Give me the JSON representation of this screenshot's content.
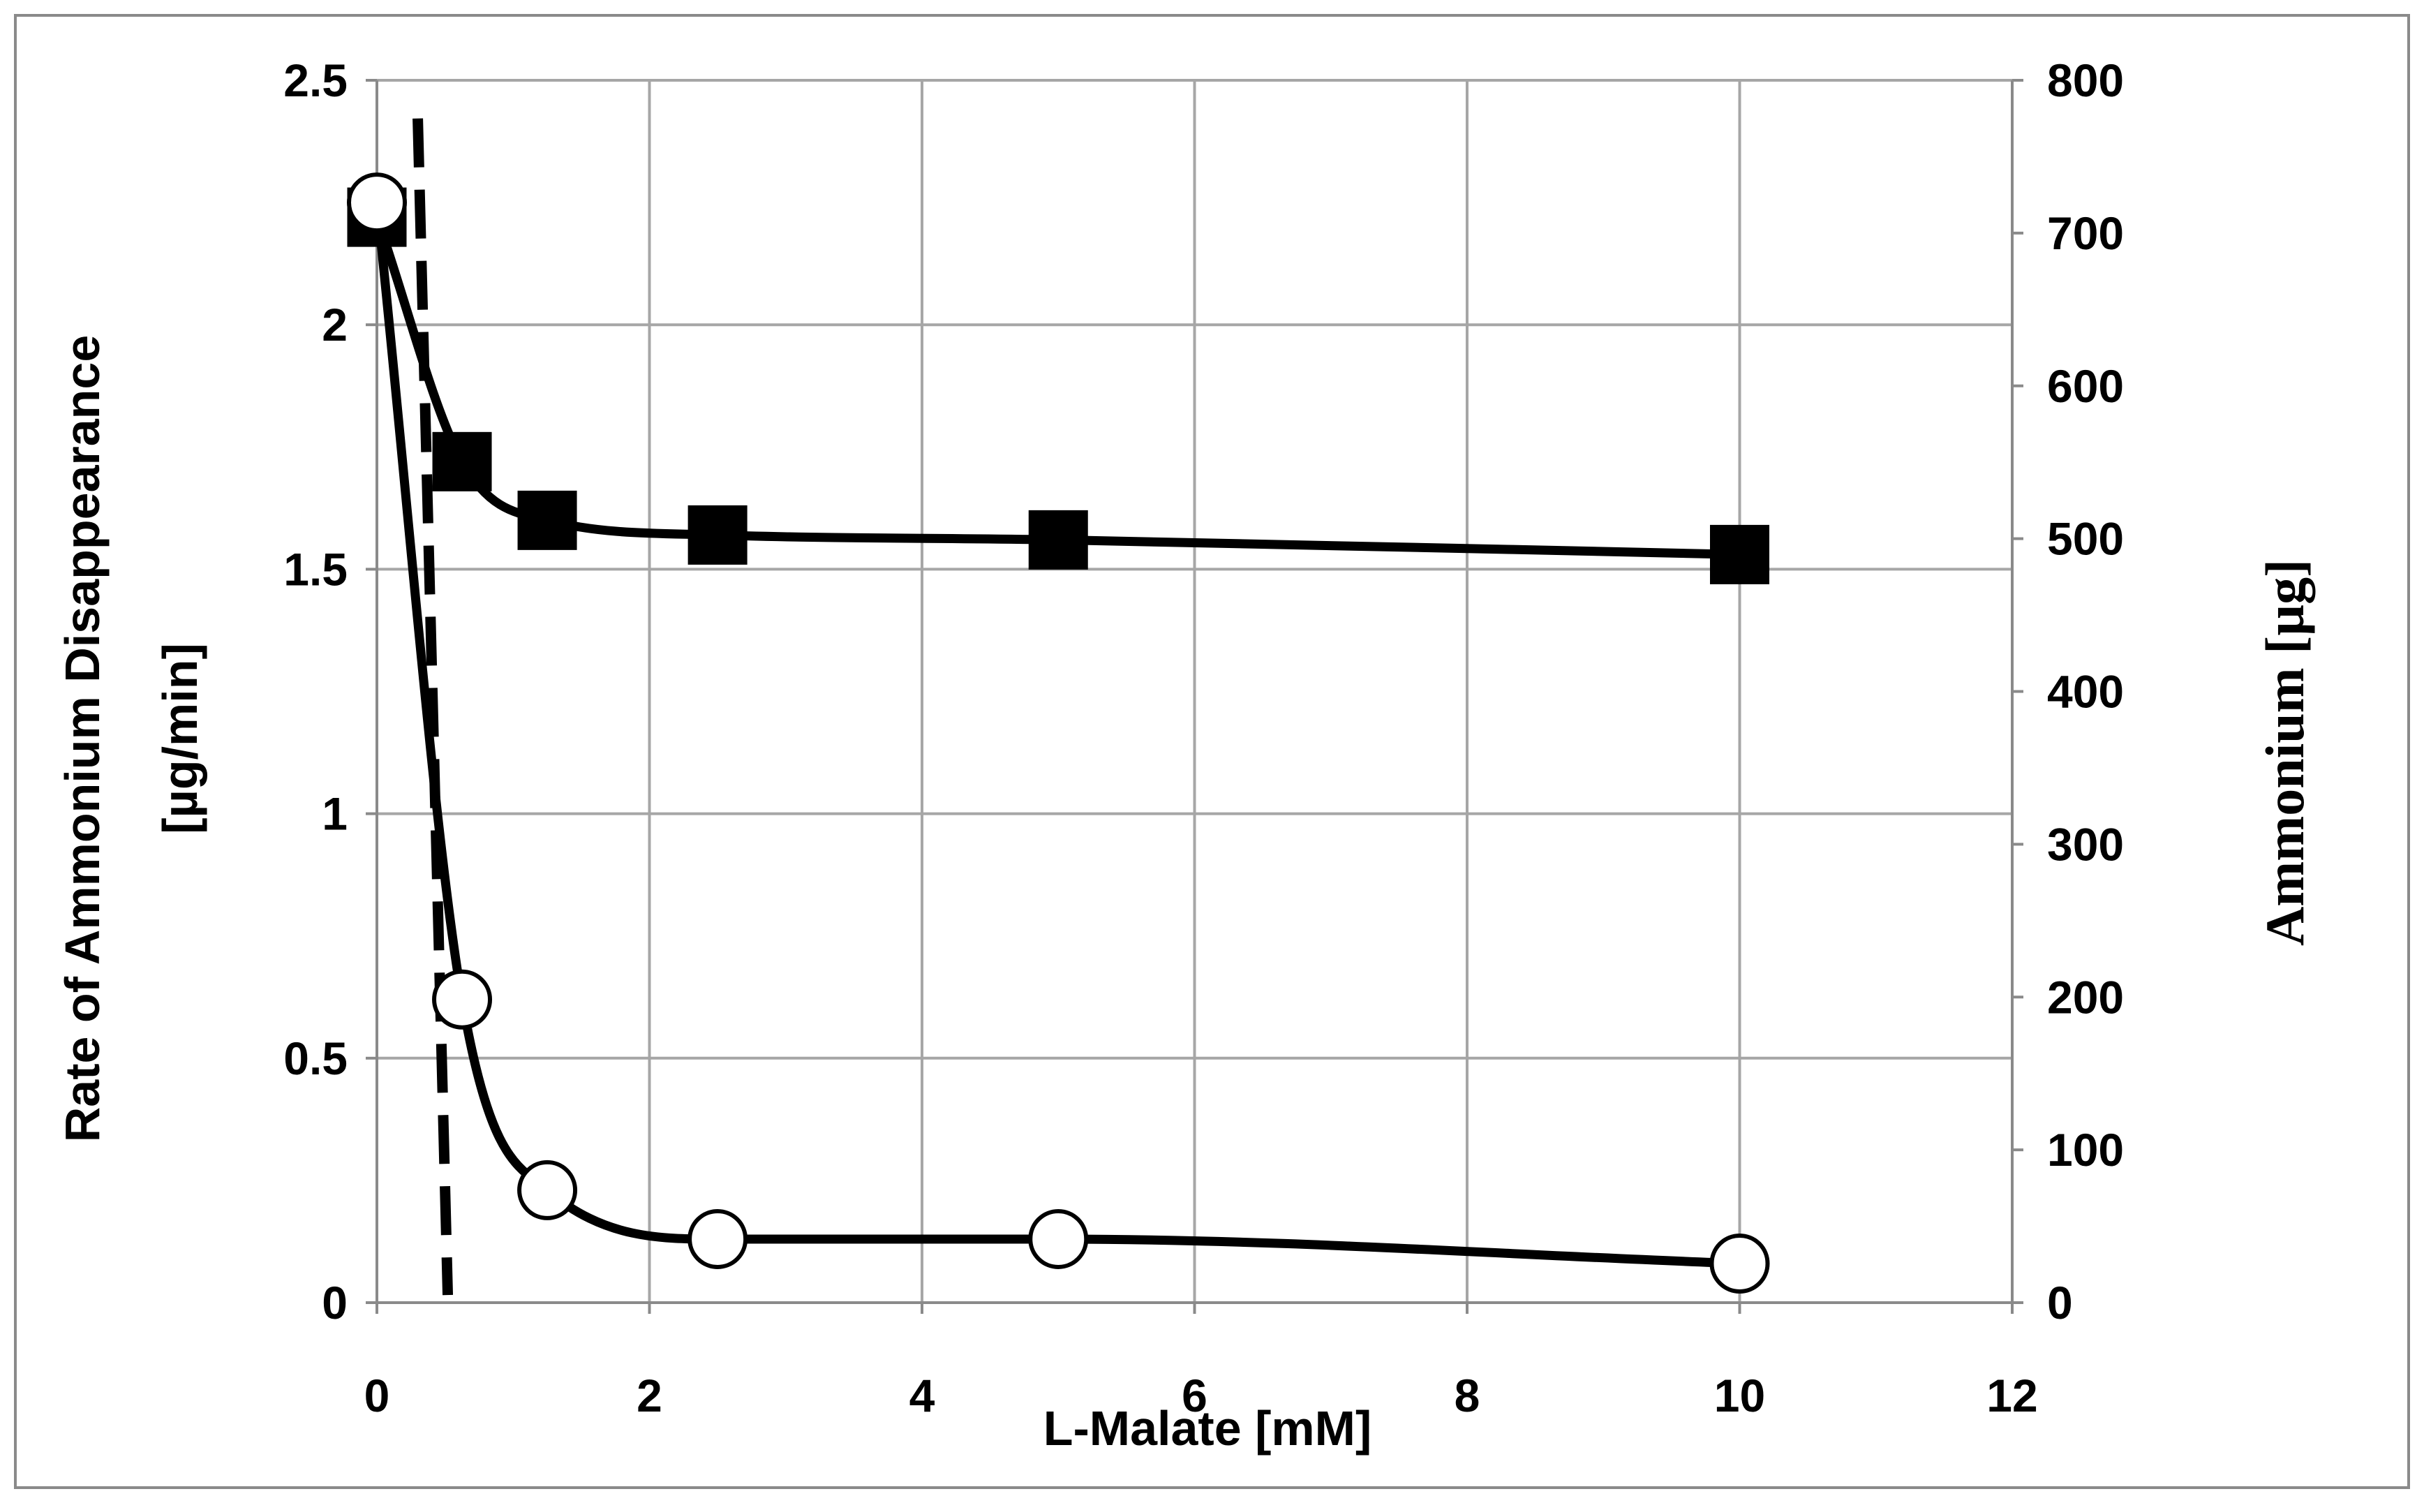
{
  "chart_data": {
    "type": "line",
    "title": "",
    "xlabel": "L-Malate [mM]",
    "ylabel_left_lines": [
      "Rate of Ammonium Disappearance",
      "[µg/min]"
    ],
    "ylabel_right": "Ammonium [µg]",
    "xlim": [
      0,
      12
    ],
    "ylim_left": [
      0,
      2.5
    ],
    "ylim_right": [
      0,
      800
    ],
    "x_ticks": [
      "0",
      "2",
      "4",
      "6",
      "8",
      "10",
      "12"
    ],
    "y_left_ticks": [
      "0",
      "0.5",
      "1",
      "1.5",
      "2",
      "2.5"
    ],
    "y_right_ticks": [
      "0",
      "100",
      "200",
      "300",
      "400",
      "500",
      "600",
      "700",
      "800"
    ],
    "grid": true,
    "legend": "none",
    "series": [
      {
        "marker": "filled-square",
        "axis": "left",
        "smooth": true,
        "x": [
          0,
          0.625,
          1.25,
          2.5,
          5,
          10
        ],
        "y": [
          2.22,
          1.72,
          1.6,
          1.57,
          1.56,
          1.53
        ]
      },
      {
        "marker": "open-circle",
        "axis": "left",
        "smooth": true,
        "x": [
          0,
          0.625,
          1.25,
          2.5,
          5,
          10
        ],
        "y": [
          2.25,
          0.62,
          0.23,
          0.13,
          0.13,
          0.08
        ]
      },
      {
        "marker": "none",
        "axis": "right",
        "style": "dashed",
        "x": [
          0.3,
          0.52
        ],
        "y": [
          775,
          5
        ]
      }
    ],
    "colors": {
      "line": "#000000",
      "grid": "#a6a6a6",
      "background": "#ffffff"
    }
  }
}
